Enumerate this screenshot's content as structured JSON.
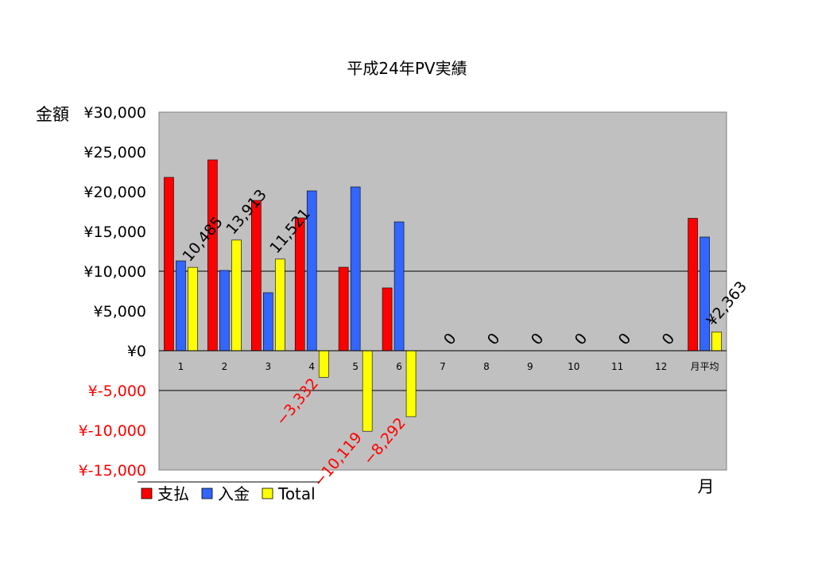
{
  "chart_data": {
    "type": "bar",
    "title": "平成24年PV実績",
    "xlabel": "月",
    "ylabel": "金額",
    "categories": [
      "1",
      "2",
      "3",
      "4",
      "5",
      "6",
      "7",
      "8",
      "9",
      "10",
      "11",
      "12",
      "月平均"
    ],
    "series": [
      {
        "name": "支払",
        "color": "#ff0000",
        "values": [
          21800,
          24000,
          18900,
          16700,
          10500,
          7900,
          0,
          0,
          0,
          0,
          0,
          0,
          16650
        ]
      },
      {
        "name": "入金",
        "color": "#3366ff",
        "values": [
          11300,
          10100,
          7300,
          20100,
          20600,
          16200,
          0,
          0,
          0,
          0,
          0,
          0,
          14300
        ]
      },
      {
        "name": "Total",
        "color": "#ffff00",
        "values": [
          10485,
          13913,
          11521,
          -3332,
          -10119,
          -8292,
          0,
          0,
          0,
          0,
          0,
          0,
          2363
        ]
      }
    ],
    "data_labels": [
      "10,485",
      "13,913",
      "11,521",
      "−3,332",
      "−10,119",
      "−8,292",
      "0",
      "0",
      "0",
      "0",
      "0",
      "0",
      "¥2,363"
    ],
    "ylim": [
      -15000,
      30000
    ],
    "yticks": [
      30000,
      25000,
      20000,
      15000,
      10000,
      5000,
      0,
      -5000,
      -10000,
      -15000
    ],
    "ytick_labels": [
      "¥30,000",
      "¥25,000",
      "¥20,000",
      "¥15,000",
      "¥10,000",
      "¥5,000",
      "¥0",
      "¥-5,000",
      "¥-10,000",
      "¥-15,000"
    ],
    "gridlines": [
      10000,
      -5000
    ],
    "plot_background": "#c0c0c0",
    "negative_color": "#ff0000",
    "legend_position": "bottom-left"
  }
}
